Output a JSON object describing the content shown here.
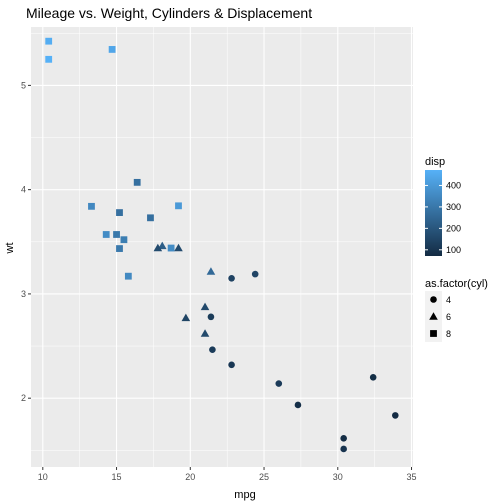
{
  "chart_data": {
    "type": "scatter",
    "title": "Mileage vs. Weight, Cylinders & Displacement",
    "xlabel": "mpg",
    "ylabel": "wt",
    "xlim": [
      9.2,
      35.1
    ],
    "ylim": [
      1.34,
      5.56
    ],
    "x_ticks": [
      10,
      15,
      20,
      25,
      30,
      35
    ],
    "y_ticks": [
      2,
      3,
      4,
      5
    ],
    "grid": true,
    "panel_background": "#EBEBEB",
    "grid_color": "#FFFFFF",
    "color_scale": {
      "title": "disp",
      "low_value": 71.1,
      "high_value": 472,
      "low_color": "#132B43",
      "high_color": "#56B1F7",
      "breaks": [
        100,
        200,
        300,
        400
      ]
    },
    "shape_legend": {
      "title": "as.factor(cyl)",
      "entries": [
        {
          "label": "4",
          "shape": "circle"
        },
        {
          "label": "6",
          "shape": "triangle"
        },
        {
          "label": "8",
          "shape": "square"
        }
      ]
    },
    "points": [
      {
        "x": 21.0,
        "y": 2.62,
        "cyl": 6,
        "disp": 160
      },
      {
        "x": 21.0,
        "y": 2.875,
        "cyl": 6,
        "disp": 160
      },
      {
        "x": 22.8,
        "y": 2.32,
        "cyl": 4,
        "disp": 108
      },
      {
        "x": 21.4,
        "y": 3.215,
        "cyl": 6,
        "disp": 258
      },
      {
        "x": 18.7,
        "y": 3.44,
        "cyl": 8,
        "disp": 360
      },
      {
        "x": 18.1,
        "y": 3.46,
        "cyl": 6,
        "disp": 225
      },
      {
        "x": 14.3,
        "y": 3.57,
        "cyl": 8,
        "disp": 360
      },
      {
        "x": 24.4,
        "y": 3.19,
        "cyl": 4,
        "disp": 146.7
      },
      {
        "x": 22.8,
        "y": 3.15,
        "cyl": 4,
        "disp": 140.8
      },
      {
        "x": 19.2,
        "y": 3.44,
        "cyl": 6,
        "disp": 167.6
      },
      {
        "x": 17.8,
        "y": 3.44,
        "cyl": 6,
        "disp": 167.6
      },
      {
        "x": 16.4,
        "y": 4.07,
        "cyl": 8,
        "disp": 275.8
      },
      {
        "x": 17.3,
        "y": 3.73,
        "cyl": 8,
        "disp": 275.8
      },
      {
        "x": 15.2,
        "y": 3.78,
        "cyl": 8,
        "disp": 275.8
      },
      {
        "x": 10.4,
        "y": 5.25,
        "cyl": 8,
        "disp": 472
      },
      {
        "x": 10.4,
        "y": 5.424,
        "cyl": 8,
        "disp": 460
      },
      {
        "x": 14.7,
        "y": 5.345,
        "cyl": 8,
        "disp": 440
      },
      {
        "x": 32.4,
        "y": 2.2,
        "cyl": 4,
        "disp": 78.7
      },
      {
        "x": 30.4,
        "y": 1.615,
        "cyl": 4,
        "disp": 75.7
      },
      {
        "x": 33.9,
        "y": 1.835,
        "cyl": 4,
        "disp": 71.1
      },
      {
        "x": 21.5,
        "y": 2.465,
        "cyl": 4,
        "disp": 120.1
      },
      {
        "x": 15.5,
        "y": 3.52,
        "cyl": 8,
        "disp": 318
      },
      {
        "x": 15.2,
        "y": 3.435,
        "cyl": 8,
        "disp": 304
      },
      {
        "x": 13.3,
        "y": 3.84,
        "cyl": 8,
        "disp": 350
      },
      {
        "x": 19.2,
        "y": 3.845,
        "cyl": 8,
        "disp": 400
      },
      {
        "x": 27.3,
        "y": 1.935,
        "cyl": 4,
        "disp": 79
      },
      {
        "x": 26.0,
        "y": 2.14,
        "cyl": 4,
        "disp": 120.3
      },
      {
        "x": 30.4,
        "y": 1.513,
        "cyl": 4,
        "disp": 95.1
      },
      {
        "x": 15.8,
        "y": 3.17,
        "cyl": 8,
        "disp": 351
      },
      {
        "x": 19.7,
        "y": 2.77,
        "cyl": 6,
        "disp": 145
      },
      {
        "x": 15.0,
        "y": 3.57,
        "cyl": 8,
        "disp": 301
      },
      {
        "x": 21.4,
        "y": 2.78,
        "cyl": 4,
        "disp": 121
      }
    ]
  }
}
